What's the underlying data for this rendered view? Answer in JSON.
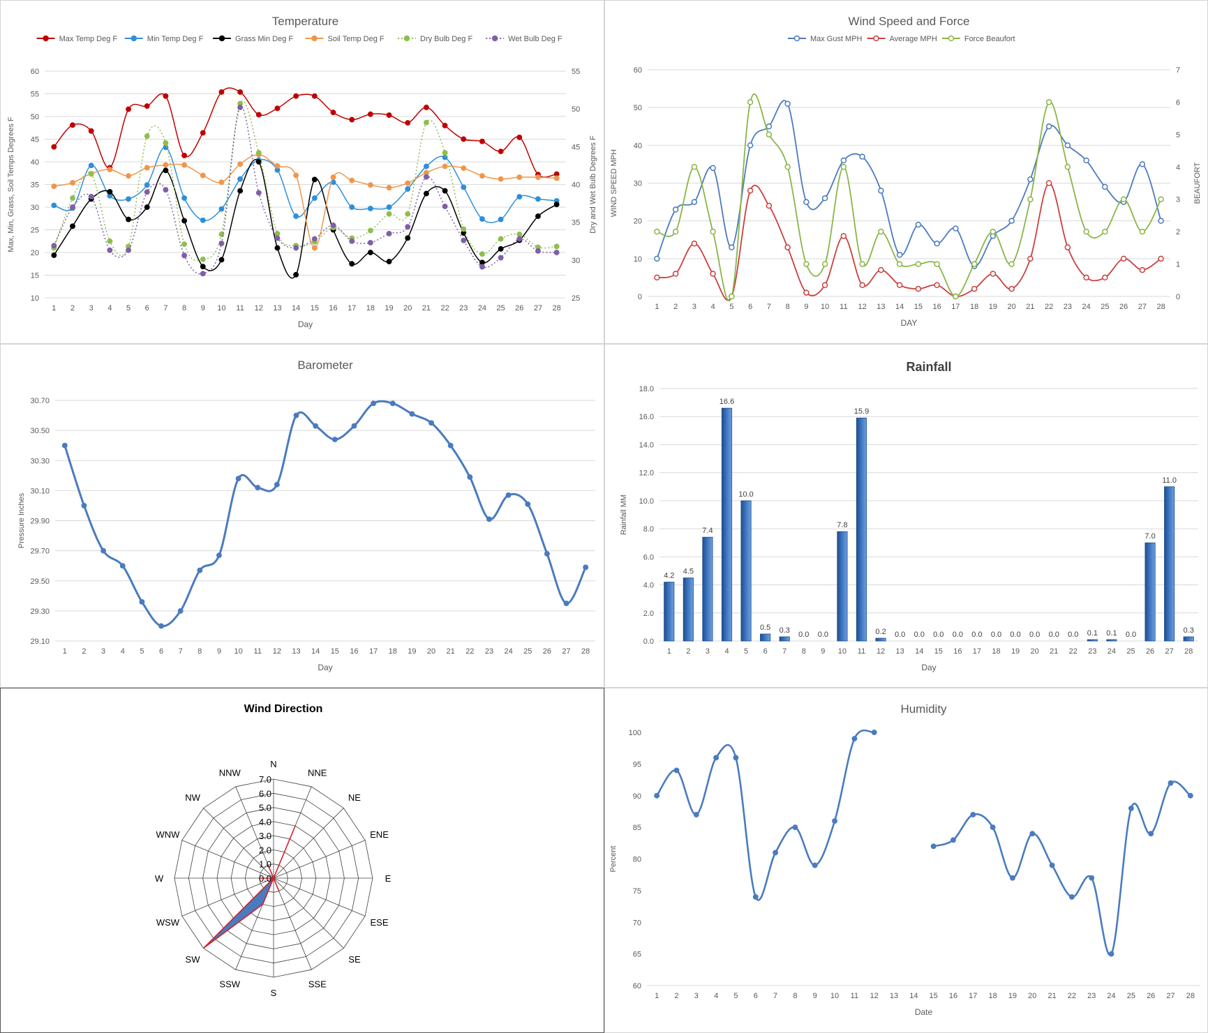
{
  "chart_data": [
    {
      "id": "temp",
      "type": "line",
      "title": "Temperature",
      "xlabel": "Day",
      "ylabel": "Max, Min, Grass, Soil Temps Degrees F",
      "ylabel2": "Dry and Wet Bulb Degrees F",
      "ylim": [
        10,
        60
      ],
      "yticks": [
        10,
        15,
        20,
        25,
        30,
        35,
        40,
        45,
        50,
        55,
        60
      ],
      "ylim2": [
        25,
        55
      ],
      "yticks2": [
        25,
        30,
        35,
        40,
        45,
        50,
        55
      ],
      "x": [
        1,
        2,
        3,
        4,
        5,
        6,
        7,
        8,
        9,
        10,
        11,
        12,
        13,
        14,
        15,
        16,
        17,
        18,
        19,
        20,
        21,
        22,
        23,
        24,
        25,
        26,
        27,
        28
      ],
      "legend": "top",
      "grid": true,
      "series": [
        {
          "name": "Max Temp Deg F",
          "color": "#c00000",
          "dashed": false,
          "axis": 1,
          "values": [
            43.3,
            48.1,
            46.8,
            38.7,
            51.6,
            52.3,
            54.5,
            41.4,
            46.4,
            55.4,
            55.4,
            50.4,
            51.8,
            54.5,
            54.5,
            50.9,
            49.3,
            50.5,
            50.3,
            48.6,
            52.0,
            48.0,
            45.0,
            44.5,
            42.3,
            45.4,
            37.2,
            37.3
          ]
        },
        {
          "name": "Min Temp Deg F",
          "color": "#2e8fd8",
          "dashed": false,
          "axis": 1,
          "values": [
            30.4,
            29.8,
            39.2,
            32.5,
            31.8,
            34.9,
            43.2,
            32.0,
            27.1,
            29.6,
            36.2,
            40.4,
            38.2,
            28.0,
            32.0,
            35.5,
            30.0,
            29.7,
            30.0,
            34.0,
            39.0,
            41.0,
            34.4,
            27.4,
            27.3,
            32.3,
            31.8,
            31.4
          ]
        },
        {
          "name": "Grass Min Deg F",
          "color": "#000000",
          "dashed": false,
          "axis": 1,
          "values": [
            19.4,
            25.8,
            31.8,
            33.4,
            27.3,
            30.0,
            38.1,
            27.0,
            16.9,
            18.4,
            33.6,
            40.0,
            21.0,
            15.1,
            36.1,
            25.0,
            17.5,
            20.0,
            18.0,
            23.2,
            33.0,
            33.6,
            24.3,
            17.8,
            20.8,
            22.7,
            28.0,
            30.6
          ]
        },
        {
          "name": "Soil Temp Deg F",
          "color": "#f0964a",
          "dashed": false,
          "axis": 1,
          "values": [
            34.6,
            35.4,
            37.4,
            38.3,
            36.9,
            38.7,
            39.3,
            39.3,
            37.0,
            35.5,
            39.5,
            41.6,
            39.1,
            37.0,
            21.0,
            36.6,
            35.9,
            34.9,
            34.3,
            35.3,
            37.6,
            39.0,
            38.6,
            36.9,
            36.2,
            36.6,
            36.6,
            36.4
          ]
        },
        {
          "name": "Dry Bulb Deg F",
          "color": "#8fbe50",
          "dashed": true,
          "axis": 2,
          "values": [
            31.6,
            38.2,
            41.4,
            32.5,
            31.8,
            46.4,
            45.5,
            32.1,
            30.1,
            33.4,
            50.7,
            44.2,
            33.5,
            31.9,
            32.4,
            34.3,
            32.9,
            33.9,
            36.1,
            36.1,
            48.2,
            44.2,
            34.1,
            30.8,
            32.8,
            33.4,
            31.7,
            31.8
          ]
        },
        {
          "name": "Wet Bulb Deg F",
          "color": "#7f5fa6",
          "dashed": true,
          "axis": 2,
          "values": [
            31.9,
            37.0,
            38.4,
            31.3,
            31.3,
            39.0,
            39.3,
            30.6,
            28.2,
            32.2,
            50.2,
            38.9,
            32.9,
            31.6,
            32.8,
            34.6,
            32.5,
            32.3,
            33.5,
            34.4,
            41.0,
            37.1,
            32.6,
            29.1,
            30.3,
            32.8,
            31.2,
            31.0
          ]
        }
      ]
    },
    {
      "id": "wind",
      "type": "line",
      "title": "Wind Speed and Force",
      "xlabel": "DAY",
      "ylabel": "WIND SPEED MPH",
      "ylabel2": "BEAUFORT",
      "ylim": [
        0,
        60
      ],
      "yticks": [
        0,
        10,
        20,
        30,
        40,
        50,
        60
      ],
      "ylim2": [
        0,
        7
      ],
      "yticks2": [
        0,
        1,
        2,
        3,
        4,
        5,
        6,
        7
      ],
      "x": [
        1,
        2,
        3,
        4,
        5,
        6,
        7,
        8,
        9,
        10,
        11,
        12,
        13,
        14,
        15,
        16,
        17,
        18,
        19,
        20,
        21,
        22,
        23,
        24,
        25,
        26,
        27,
        28
      ],
      "legend": "top",
      "grid": true,
      "series": [
        {
          "name": "Max Gust MPH",
          "color": "#4a7bbf",
          "axis": 1,
          "values": [
            10,
            23,
            25,
            34,
            13,
            40,
            45,
            51,
            25,
            26,
            36,
            37,
            28,
            11,
            19,
            14,
            18,
            8,
            16,
            20,
            31,
            45,
            40,
            36,
            29,
            25,
            35,
            20
          ]
        },
        {
          "name": "Average MPH",
          "color": "#c9403f",
          "axis": 1,
          "values": [
            5,
            6,
            14,
            6,
            0,
            28,
            24,
            13,
            1,
            3,
            16,
            3,
            7,
            3,
            2,
            3,
            0,
            2,
            6,
            2,
            10,
            30,
            13,
            5,
            5,
            10,
            7,
            10
          ]
        },
        {
          "name": "Force Beaufort",
          "color": "#8ab547",
          "axis": 2,
          "values": [
            2,
            2,
            4,
            2,
            0,
            6,
            5,
            4,
            1,
            1,
            4,
            1,
            2,
            1,
            1,
            1,
            0,
            1,
            2,
            1,
            3,
            6,
            4,
            2,
            2,
            3,
            2,
            3
          ]
        }
      ]
    },
    {
      "id": "baro",
      "type": "line",
      "title": "Barometer",
      "xlabel": "Day",
      "ylabel": "Pressure Inches",
      "ylim": [
        29.1,
        30.7
      ],
      "yticks": [
        "29.10",
        "29.30",
        "29.50",
        "29.70",
        "29.90",
        "30.10",
        "30.30",
        "30.50",
        "30.70"
      ],
      "x": [
        1,
        2,
        3,
        4,
        5,
        6,
        7,
        8,
        9,
        10,
        11,
        12,
        13,
        14,
        15,
        16,
        17,
        18,
        19,
        20,
        21,
        22,
        23,
        24,
        25,
        26,
        27,
        28
      ],
      "grid": true,
      "series": [
        {
          "name": "",
          "color": "#4a7bbf",
          "values": [
            30.4,
            30.0,
            29.7,
            29.6,
            29.36,
            29.2,
            29.3,
            29.57,
            29.67,
            30.18,
            30.12,
            30.14,
            30.6,
            30.53,
            30.44,
            30.53,
            30.68,
            30.68,
            30.61,
            30.55,
            30.4,
            30.19,
            29.91,
            30.07,
            30.01,
            29.68,
            29.35,
            29.59
          ]
        }
      ]
    },
    {
      "id": "rain",
      "type": "bar",
      "title": "Rainfall",
      "xlabel": "Day",
      "ylabel": "Rainfall MM",
      "ylim": [
        0,
        18
      ],
      "yticks": [
        "0.0",
        "2.0",
        "4.0",
        "6.0",
        "8.0",
        "10.0",
        "12.0",
        "14.0",
        "16.0",
        "18.0"
      ],
      "categories": [
        "1",
        "2",
        "3",
        "4",
        "5",
        "6",
        "7",
        "8",
        "9",
        "10",
        "11",
        "12",
        "13",
        "14",
        "15",
        "16",
        "17",
        "18",
        "19",
        "20",
        "21",
        "22",
        "23",
        "24",
        "25",
        "26",
        "27",
        "28"
      ],
      "values": [
        4.2,
        4.5,
        7.4,
        16.6,
        10.0,
        0.5,
        0.3,
        0.0,
        0.0,
        7.8,
        15.9,
        0.2,
        0.0,
        0.0,
        0.0,
        0.0,
        0.0,
        0.0,
        0.0,
        0.0,
        0.0,
        0.0,
        0.1,
        0.1,
        0.0,
        7.0,
        11.0,
        0.3
      ],
      "labels": [
        "4.2",
        "4.5",
        "7.4",
        "16.6",
        "10.0",
        "0.5",
        "0.3",
        "0.0",
        "0.0",
        "7.8",
        "15.9",
        "0.2",
        "0.0",
        "0.0",
        "0.0",
        "0.0",
        "0.0",
        "0.0",
        "0.0",
        "0.0",
        "0.0",
        "0.0",
        "0.1",
        "0.1",
        "0.0",
        "7.0",
        "11.0",
        "0.3"
      ],
      "color": "#3c74bf",
      "grid": true
    },
    {
      "id": "dir",
      "type": "radar",
      "title": "Wind Direction",
      "directions": [
        "N",
        "NNE",
        "NE",
        "ENE",
        "E",
        "ESE",
        "SE",
        "SSE",
        "S",
        "SSW",
        "SW",
        "WSW",
        "W",
        "WNW",
        "NW",
        "NNW"
      ],
      "rmax": 7,
      "rticks": [
        "0.0",
        "1.0",
        "2.0",
        "3.0",
        "4.0",
        "5.0",
        "6.0",
        "7.0"
      ],
      "values": [
        0,
        4,
        0,
        0,
        0,
        0,
        0,
        1,
        0,
        2,
        7,
        0,
        1,
        0,
        0,
        1
      ],
      "fill": "#4a7bbf",
      "outline": "#d0202a"
    },
    {
      "id": "hum",
      "type": "line",
      "title": "Humidity",
      "xlabel": "Date",
      "ylabel": "Percent",
      "ylim": [
        60,
        100
      ],
      "yticks": [
        60,
        65,
        70,
        75,
        80,
        85,
        90,
        95,
        100
      ],
      "x": [
        1,
        2,
        3,
        4,
        5,
        6,
        7,
        8,
        9,
        10,
        11,
        12,
        13,
        14,
        15,
        16,
        17,
        18,
        19,
        20,
        21,
        22,
        23,
        24,
        25,
        26,
        27,
        28
      ],
      "grid": false,
      "series": [
        {
          "name": "",
          "color": "#4a7bbf",
          "values": [
            90,
            94,
            87,
            96,
            96,
            74,
            81,
            85,
            79,
            86,
            99,
            100,
            null,
            null,
            82,
            83,
            87,
            85,
            77,
            84,
            79,
            74,
            77,
            65,
            88,
            84,
            92,
            90
          ]
        }
      ]
    }
  ]
}
